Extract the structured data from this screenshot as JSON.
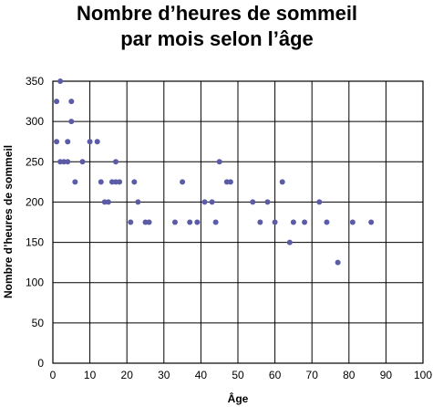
{
  "chart_data": {
    "type": "scatter",
    "title_lines": [
      "Nombre d’heures de sommeil",
      "par mois selon l’âge"
    ],
    "xlabel": "Âge",
    "ylabel": "Nombre d’heures de sommeil",
    "xlim": [
      0,
      100
    ],
    "ylim": [
      0,
      350
    ],
    "x_ticks": [
      "0",
      "10",
      "20",
      "30",
      "40",
      "50",
      "60",
      "70",
      "80",
      "90",
      "100"
    ],
    "y_ticks": [
      "0",
      "50",
      "100",
      "150",
      "200",
      "250",
      "300",
      "350"
    ],
    "grid": true,
    "point_color": "#5b5ba6",
    "points": [
      [
        1,
        325
      ],
      [
        1,
        275
      ],
      [
        2,
        350
      ],
      [
        2,
        250
      ],
      [
        3,
        250
      ],
      [
        4,
        275
      ],
      [
        4,
        250
      ],
      [
        5,
        325
      ],
      [
        5,
        300
      ],
      [
        6,
        225
      ],
      [
        8,
        250
      ],
      [
        10,
        275
      ],
      [
        12,
        275
      ],
      [
        13,
        225
      ],
      [
        14,
        200
      ],
      [
        15,
        200
      ],
      [
        16,
        225
      ],
      [
        17,
        250
      ],
      [
        17,
        225
      ],
      [
        18,
        225
      ],
      [
        21,
        175
      ],
      [
        22,
        225
      ],
      [
        23,
        200
      ],
      [
        25,
        175
      ],
      [
        26,
        175
      ],
      [
        33,
        175
      ],
      [
        35,
        225
      ],
      [
        37,
        175
      ],
      [
        39,
        175
      ],
      [
        41,
        200
      ],
      [
        43,
        200
      ],
      [
        44,
        175
      ],
      [
        45,
        250
      ],
      [
        47,
        225
      ],
      [
        48,
        225
      ],
      [
        54,
        200
      ],
      [
        56,
        175
      ],
      [
        58,
        200
      ],
      [
        60,
        175
      ],
      [
        62,
        225
      ],
      [
        64,
        150
      ],
      [
        65,
        175
      ],
      [
        68,
        175
      ],
      [
        72,
        200
      ],
      [
        74,
        175
      ],
      [
        77,
        125
      ],
      [
        81,
        175
      ],
      [
        86,
        175
      ]
    ]
  }
}
